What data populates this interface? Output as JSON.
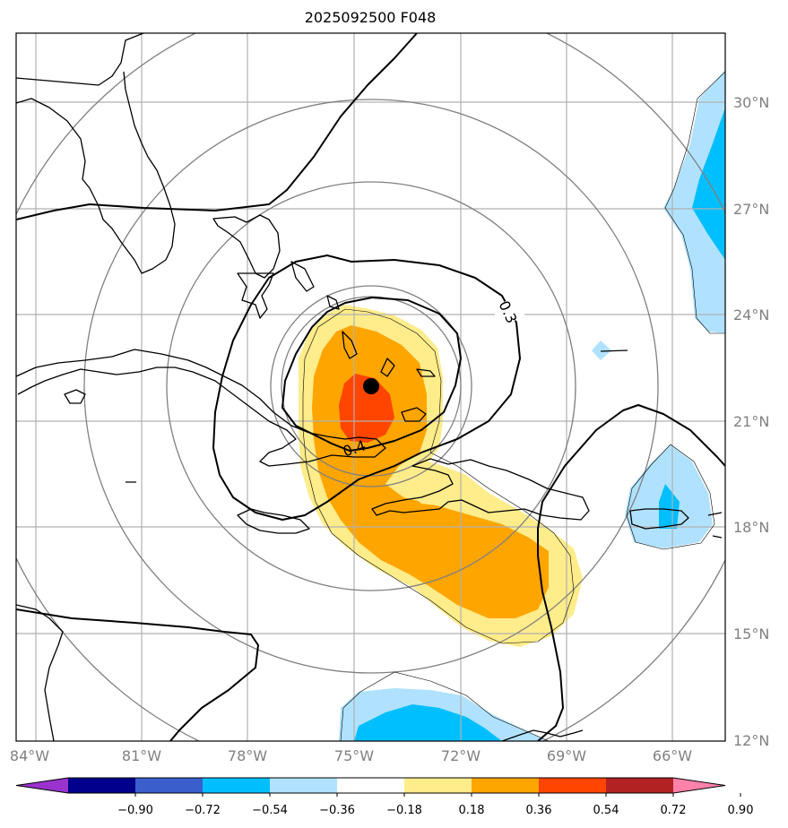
{
  "title": "2025092500 F048",
  "lon_labels": [
    "84°W",
    "81°W",
    "78°W",
    "75°W",
    "72°W",
    "69°W",
    "66°W"
  ],
  "lat_labels": [
    "30°N",
    "27°N",
    "24°N",
    "21°N",
    "18°N",
    "15°N",
    "12°N"
  ],
  "contour_labels": [
    "0.3",
    "0.4"
  ],
  "colorbar": {
    "ticks": [
      "−0.90",
      "−0.72",
      "−0.54",
      "−0.36",
      "−0.18",
      "0.18",
      "0.36",
      "0.54",
      "0.72",
      "0.90"
    ],
    "colors": [
      "#9a32cd",
      "#00008b",
      "#3a5fcd",
      "#00bfff",
      "#b0e2ff",
      "#ffffff",
      "#ffec8b",
      "#ffa500",
      "#ff4500",
      "#b22222",
      "#ff82ab"
    ]
  },
  "storm_center": {
    "lon": -73.8,
    "lat": 21.9
  },
  "colors": {
    "grid": "#b0b0b0",
    "range_rings": "#808080",
    "contour": "#000000",
    "coast": "#000000"
  }
}
